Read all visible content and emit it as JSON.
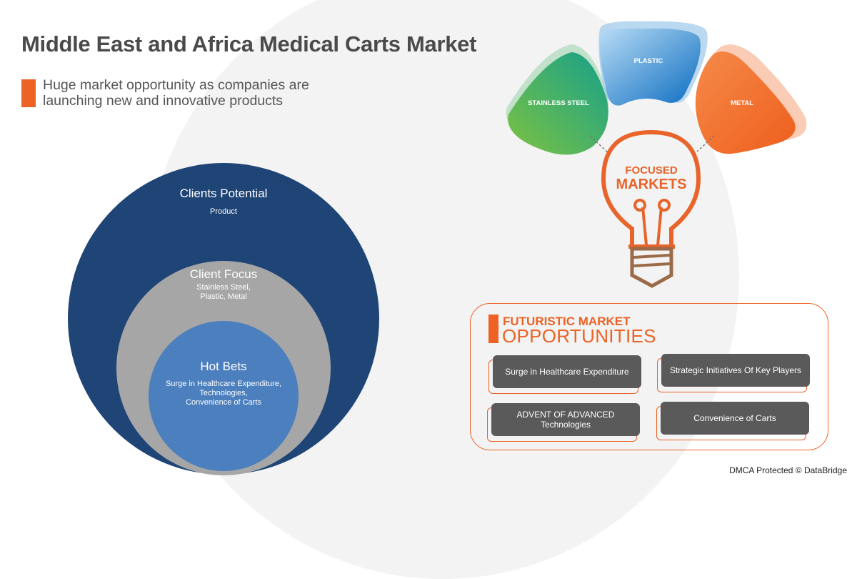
{
  "title": "Middle East and Africa Medical Carts Market",
  "subtitle_line1": "Huge market opportunity as companies are",
  "subtitle_line2": "launching new and innovative products",
  "circles": {
    "outer": {
      "title": "Clients Potential",
      "text": "Product",
      "color": "#1f4476"
    },
    "middle": {
      "title": "Client Focus",
      "line1": "Stainless Steel,",
      "line2": "Plastic, Metal",
      "color": "#a6a6a6"
    },
    "inner": {
      "title": "Hot Bets",
      "line1": "Surge in Healthcare Expenditure,",
      "line2": "Technologies,",
      "line3": "Convenience of Carts",
      "color": "#4c7fbd"
    }
  },
  "focused": {
    "line1": "FOCUSED",
    "line2": "MARKETS",
    "segments": [
      {
        "label": "STAINLESS STEEL",
        "color": "#3bb06a"
      },
      {
        "label": "PLASTIC",
        "color": "#2a8fd6"
      },
      {
        "label": "METAL",
        "color": "#f26a2a"
      }
    ]
  },
  "opportunities": {
    "title_line1": "FUTURISTIC MARKET",
    "title_line2": "OPPORTUNITIES",
    "items": [
      {
        "line1": "Surge in Healthcare Expenditure",
        "line2": ""
      },
      {
        "line1": "Strategic Initiatives Of Key Players",
        "line2": ""
      },
      {
        "line1": "ADVENT OF ADVANCED",
        "line2": "Technologies"
      },
      {
        "line1": "Convenience of Carts",
        "line2": ""
      }
    ]
  },
  "footer": "DMCA Protected © DataBridge"
}
